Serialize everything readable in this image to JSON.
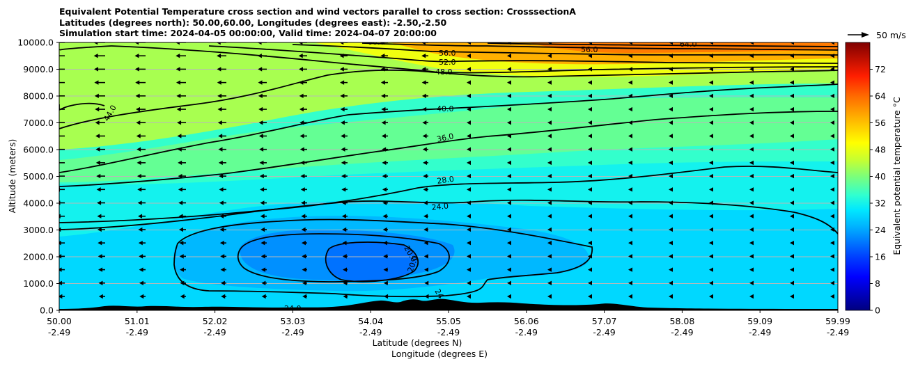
{
  "title_lines": [
    "Equivalent Potential Temperature cross section and wind vectors parallel to cross section: CrosssectionA",
    "Latitudes (degrees north): 50.00,60.00, Longitudes (degrees east): -2.50,-2.50",
    "Simulation start time: 2024-04-05 00:00:00, Valid time: 2024-04-07 20:00:00"
  ],
  "chart_data": {
    "type": "heatmap",
    "subtype": "cross-section filled contour with contour lines and wind vectors",
    "ylabel": "Altitude (meters)",
    "xlabel_lat": "Latitude (degrees N)",
    "xlabel_lon": "Longitude (degrees E)",
    "ylim": [
      0,
      10000
    ],
    "xlim": [
      50.0,
      59.99
    ],
    "y_ticks": [
      "0.0",
      "1000.0",
      "2000.0",
      "3000.0",
      "4000.0",
      "5000.0",
      "6000.0",
      "7000.0",
      "8000.0",
      "9000.0",
      "10000.0"
    ],
    "x_ticks": [
      {
        "lat": "50.00",
        "lon": "-2.49"
      },
      {
        "lat": "51.01",
        "lon": "-2.49"
      },
      {
        "lat": "52.02",
        "lon": "-2.49"
      },
      {
        "lat": "53.03",
        "lon": "-2.49"
      },
      {
        "lat": "54.04",
        "lon": "-2.49"
      },
      {
        "lat": "55.05",
        "lon": "-2.49"
      },
      {
        "lat": "56.06",
        "lon": "-2.49"
      },
      {
        "lat": "57.07",
        "lon": "-2.49"
      },
      {
        "lat": "58.08",
        "lon": "-2.49"
      },
      {
        "lat": "59.09",
        "lon": "-2.49"
      },
      {
        "lat": "59.99",
        "lon": "-2.49"
      }
    ],
    "grid": "horizontal",
    "colorbar": {
      "label": "Equivalent potential temperature °C",
      "range": [
        0,
        80
      ],
      "ticks": [
        "0",
        "8",
        "16",
        "24",
        "32",
        "40",
        "48",
        "56",
        "64",
        "72"
      ],
      "colormap": "jet"
    },
    "contour_levels": [
      {
        "value": 20.0,
        "label": "20.0"
      },
      {
        "value": 24.0,
        "label": "24.0"
      },
      {
        "value": 28.0,
        "label": "28.0"
      },
      {
        "value": 36.0,
        "label": "36.0"
      },
      {
        "value": 40.0,
        "label": "40.0"
      },
      {
        "value": 44.0,
        "label": "44.0"
      },
      {
        "value": 48.0,
        "label": "48.0"
      },
      {
        "value": 52.0,
        "label": "52.0"
      },
      {
        "value": 56.0,
        "label": "56.0"
      },
      {
        "value": 60.0,
        "label": "60.0"
      },
      {
        "value": 64.0,
        "label": "64.0"
      }
    ],
    "vector_key": {
      "label": "50 m/s",
      "speed_ms": 50
    },
    "wind": "southerly/northerly component toward decreasing latitude, roughly 10-20 m/s aloft, weakening toward east",
    "terrain": "black orography silhouette along surface"
  }
}
